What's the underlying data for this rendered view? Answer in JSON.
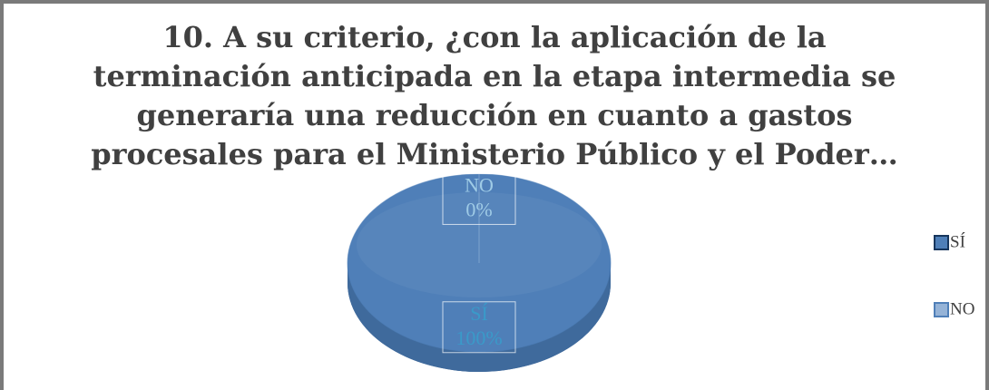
{
  "chart_data": {
    "type": "pie",
    "title": "10. A su criterio, ¿con la aplicación de la terminación anticipada en la etapa intermedia se generaría una reducción en cuanto a gastos procesales para el Ministerio Público y el Poder…",
    "categories": [
      "SÍ",
      "NO"
    ],
    "values": [
      100,
      0
    ],
    "value_labels": [
      "100%",
      "0%"
    ],
    "colors": [
      "#4f7fb8",
      "#95b3d7"
    ],
    "legend": "right"
  }
}
